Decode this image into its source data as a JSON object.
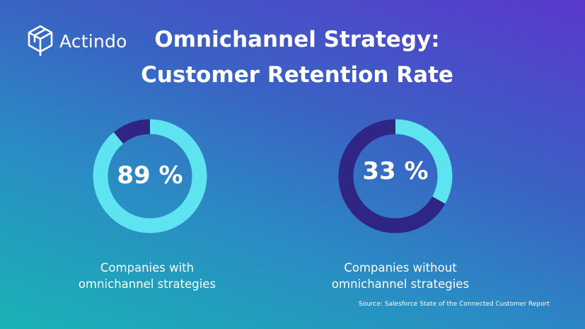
{
  "brand": {
    "name": "Actindo"
  },
  "title": {
    "line1": "Omnichannel Strategy:",
    "line2": "Customer Retention Rate"
  },
  "chart_data": [
    {
      "type": "pie",
      "title": "",
      "value": 89,
      "label": "89 %",
      "caption": [
        "Companies with",
        "omnichannel strategies"
      ],
      "colors": {
        "filled": "#5de4f0",
        "remainder": "#2e2584"
      }
    },
    {
      "type": "pie",
      "title": "",
      "value": 33,
      "label": "33 %",
      "caption": [
        "Companies without",
        "omnichannel strategies"
      ],
      "colors": {
        "filled": "#5de4f0",
        "remainder": "#2e2584"
      }
    }
  ],
  "source": "Source: Salesforce State of the Connected Customer Report"
}
